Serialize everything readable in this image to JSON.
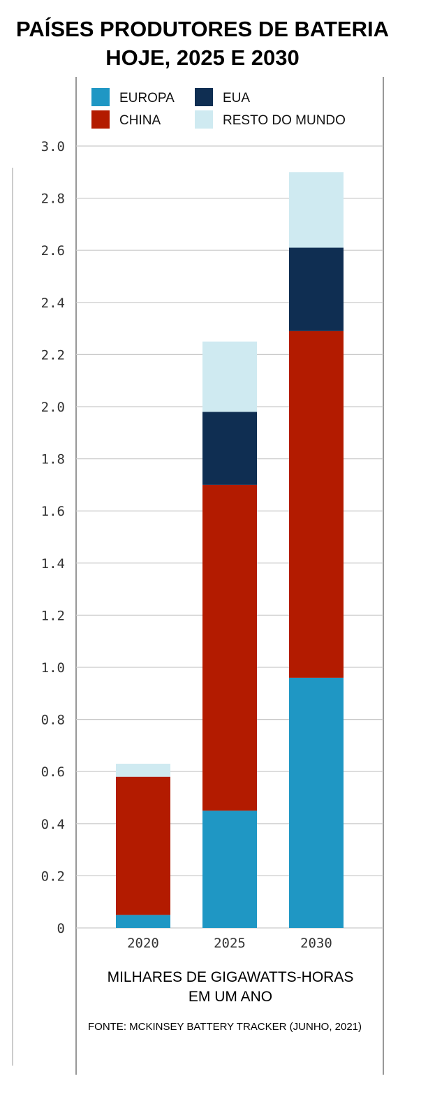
{
  "chart_data": {
    "type": "bar",
    "stacked": true,
    "title_line1": "PAÍSES PRODUTORES DE BATERIA",
    "title_line2": "HOJE, 2025 E 2030",
    "xlabel_line1": "MILHARES DE GIGAWATTS-HORAS",
    "xlabel_line2": "EM UM ANO",
    "source": "FONTE: MCKINSEY BATTERY TRACKER (JUNHO, 2021)",
    "categories": [
      "2020",
      "2025",
      "2030"
    ],
    "ylim": [
      0,
      3.0
    ],
    "yticks": [
      "0",
      "0.2",
      "0.4",
      "0.6",
      "0.8",
      "1.0",
      "1.2",
      "1.4",
      "1.6",
      "1.8",
      "2.0",
      "2.2",
      "2.4",
      "2.6",
      "2.8",
      "3.0"
    ],
    "grid": true,
    "legend_position": "top",
    "series": [
      {
        "name": "EUROPA",
        "color": "#1f97c4",
        "values": [
          0.05,
          0.45,
          0.96
        ]
      },
      {
        "name": "CHINA",
        "color": "#b31b00",
        "values": [
          0.53,
          1.25,
          1.33
        ]
      },
      {
        "name": "EUA",
        "color": "#0f2e52",
        "values": [
          0.0,
          0.28,
          0.32
        ]
      },
      {
        "name": "RESTO DO MUNDO",
        "color": "#cfeaf1",
        "values": [
          0.05,
          0.27,
          0.29
        ]
      }
    ]
  }
}
